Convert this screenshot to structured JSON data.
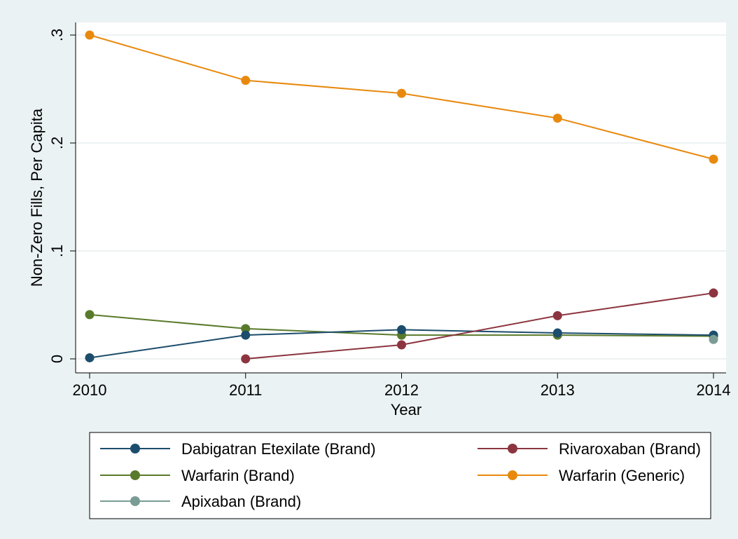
{
  "chart_data": {
    "type": "line",
    "xlabel": "Year",
    "ylabel": "Non-Zero Fills, Per Capita",
    "x": [
      2010,
      2011,
      2012,
      2013,
      2014
    ],
    "xlim": [
      2010,
      2014
    ],
    "ylim": [
      0,
      0.3
    ],
    "x_ticks": [
      {
        "value": 2010,
        "label": "2010"
      },
      {
        "value": 2011,
        "label": "2011"
      },
      {
        "value": 2012,
        "label": "2012"
      },
      {
        "value": 2013,
        "label": "2013"
      },
      {
        "value": 2014,
        "label": "2014"
      }
    ],
    "y_ticks": [
      {
        "value": 0,
        "label": "0"
      },
      {
        "value": 0.1,
        "label": ".1"
      },
      {
        "value": 0.2,
        "label": ".2"
      },
      {
        "value": 0.3,
        "label": ".3"
      }
    ],
    "grid": true,
    "legend_position": "bottom",
    "series": [
      {
        "name": "Warfarin (Generic)",
        "color": "#e8890e",
        "legend_index": 3,
        "points": [
          [
            2010,
            0.3
          ],
          [
            2011,
            0.258
          ],
          [
            2012,
            0.246
          ],
          [
            2013,
            0.223
          ],
          [
            2014,
            0.185
          ]
        ]
      },
      {
        "name": "Warfarin (Brand)",
        "color": "#5a7a2b",
        "legend_index": 2,
        "points": [
          [
            2010,
            0.041
          ],
          [
            2011,
            0.028
          ],
          [
            2012,
            0.022
          ],
          [
            2013,
            0.022
          ],
          [
            2014,
            0.021
          ]
        ]
      },
      {
        "name": "Dabigatran Etexilate (Brand)",
        "color": "#1c4d6c",
        "legend_index": 0,
        "points": [
          [
            2010,
            0.001
          ],
          [
            2011,
            0.022
          ],
          [
            2012,
            0.027
          ],
          [
            2013,
            0.024
          ],
          [
            2014,
            0.022
          ]
        ]
      },
      {
        "name": "Rivaroxaban (Brand)",
        "color": "#8c3540",
        "legend_index": 1,
        "points": [
          [
            2011,
            0.0
          ],
          [
            2012,
            0.013
          ],
          [
            2013,
            0.04
          ],
          [
            2014,
            0.061
          ]
        ]
      },
      {
        "name": "Apixaban (Brand)",
        "color": "#7a9c94",
        "legend_index": 4,
        "points": [
          [
            2014,
            0.018
          ]
        ]
      }
    ]
  }
}
